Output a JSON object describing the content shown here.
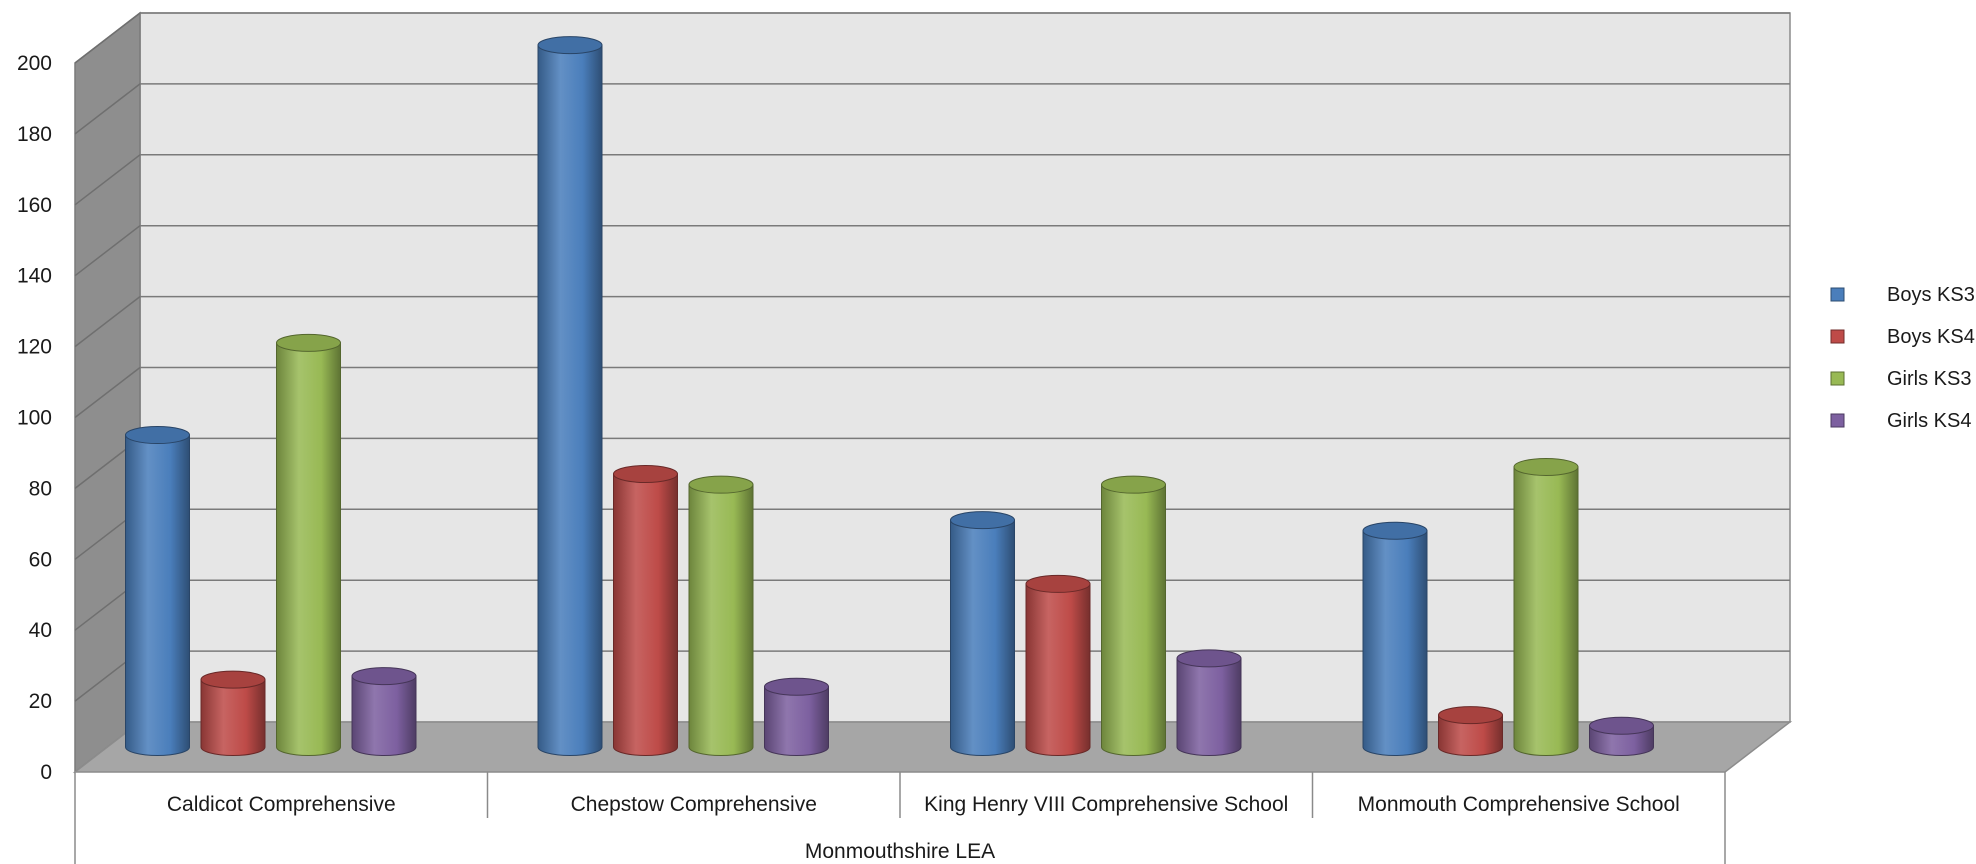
{
  "chart_data": {
    "type": "bar",
    "style": "3d-cylinder",
    "title": "",
    "xlabel": "",
    "ylabel": "",
    "group_label": "Monmouthshire LEA",
    "categories": [
      "Caldicot Comprehensive",
      "Chepstow Comprehensive",
      "King Henry VIII Comprehensive School",
      "Monmouth Comprehensive School"
    ],
    "series": [
      {
        "name": "Boys KS3",
        "color": "#4a7ebb",
        "values": [
          88,
          198,
          64,
          61
        ]
      },
      {
        "name": "Boys KS4",
        "color": "#be4b48",
        "values": [
          19,
          77,
          46,
          9
        ]
      },
      {
        "name": "Girls KS3",
        "color": "#98b954",
        "values": [
          114,
          74,
          74,
          79
        ]
      },
      {
        "name": "Girls KS4",
        "color": "#7d60a0",
        "values": [
          20,
          17,
          25,
          6
        ]
      }
    ],
    "ylim": [
      0,
      200
    ],
    "yticks": [
      "0",
      "20",
      "40",
      "60",
      "80",
      "100",
      "120",
      "140",
      "160",
      "180",
      "200"
    ],
    "grid": true,
    "legend_position": "right",
    "wall_color": "#e6e6e6",
    "floor_color": "#a6a6a6"
  }
}
